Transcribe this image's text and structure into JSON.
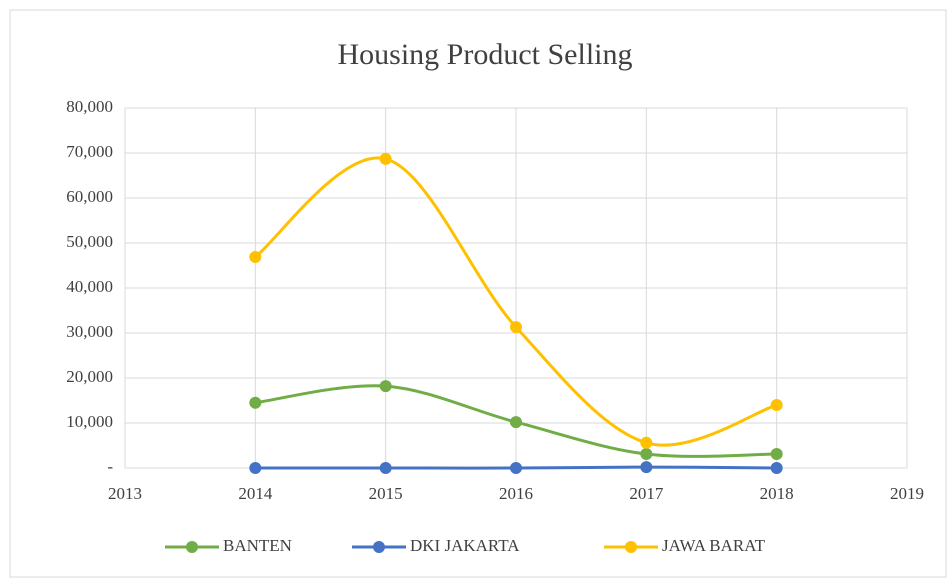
{
  "chart_data": {
    "type": "line",
    "title": "Housing Product Selling",
    "x": [
      2014,
      2015,
      2016,
      2017,
      2018
    ],
    "series": [
      {
        "name": "BANTEN",
        "color": "#70ad47",
        "values": [
          14500,
          18200,
          10200,
          3100,
          3100
        ]
      },
      {
        "name": "DKI JAKARTA",
        "color": "#4472c4",
        "values": [
          0,
          0,
          0,
          200,
          0
        ]
      },
      {
        "name": "JAWA BARAT",
        "color": "#ffc000",
        "values": [
          46900,
          68700,
          31300,
          5600,
          14000
        ]
      }
    ],
    "xlim": [
      2013,
      2019
    ],
    "xticks": [
      2013,
      2014,
      2015,
      2016,
      2017,
      2018,
      2019
    ],
    "ylim": [
      0,
      80000
    ],
    "yticks": [
      {
        "value": 0,
        "label": "-"
      },
      {
        "value": 10000,
        "label": "10,000"
      },
      {
        "value": 20000,
        "label": "20,000"
      },
      {
        "value": 30000,
        "label": "30,000"
      },
      {
        "value": 40000,
        "label": "40,000"
      },
      {
        "value": 50000,
        "label": "50,000"
      },
      {
        "value": 60000,
        "label": "60,000"
      },
      {
        "value": 70000,
        "label": "70,000"
      },
      {
        "value": 80000,
        "label": "80,000"
      }
    ],
    "grid": true,
    "smooth": true,
    "legend": "bottom"
  }
}
